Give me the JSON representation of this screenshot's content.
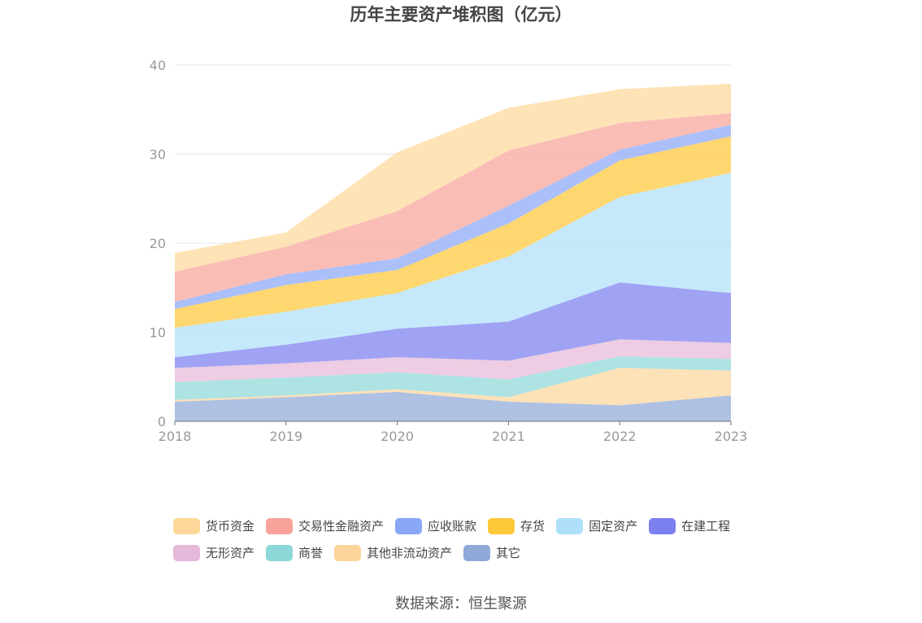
{
  "chart_data": {
    "type": "area",
    "stacked": true,
    "title": "历年主要资产堆积图（亿元）",
    "source": "数据来源：恒生聚源",
    "x": [
      "2018",
      "2019",
      "2020",
      "2021",
      "2022",
      "2023"
    ],
    "ylim": [
      0,
      40
    ],
    "yticks": [
      "0",
      "10",
      "20",
      "30",
      "40"
    ],
    "grid": true,
    "legend_position": "bottom",
    "series": [
      {
        "name": "其它",
        "color": "#8fa9d8",
        "values": [
          2.2,
          2.7,
          3.3,
          2.2,
          1.8,
          2.9
        ]
      },
      {
        "name": "其他非流动资产",
        "color": "#fcd59b",
        "values": [
          0.2,
          0.2,
          0.3,
          0.5,
          4.2,
          2.8
        ]
      },
      {
        "name": "商誉",
        "color": "#8dd8d8",
        "values": [
          2.0,
          2.0,
          1.9,
          2.0,
          1.3,
          1.3
        ]
      },
      {
        "name": "无形资产",
        "color": "#e6b8da",
        "values": [
          1.6,
          1.6,
          1.7,
          2.1,
          1.9,
          1.8
        ]
      },
      {
        "name": "在建工程",
        "color": "#7b7ff0",
        "values": [
          1.2,
          2.1,
          3.2,
          4.4,
          6.4,
          5.6
        ]
      },
      {
        "name": "固定资产",
        "color": "#aee1f9",
        "values": [
          3.3,
          3.7,
          4.0,
          7.3,
          9.6,
          13.5
        ]
      },
      {
        "name": "存货",
        "color": "#ffc839",
        "values": [
          2.1,
          3.0,
          2.6,
          3.7,
          4.1,
          4.1
        ]
      },
      {
        "name": "应收账款",
        "color": "#8aa6f7",
        "values": [
          0.8,
          1.2,
          1.3,
          2.0,
          1.2,
          1.3
        ]
      },
      {
        "name": "交易性金融资产",
        "color": "#f8a39a",
        "values": [
          3.4,
          3.1,
          5.3,
          6.2,
          3.0,
          1.3
        ]
      },
      {
        "name": "货币资金",
        "color": "#fdd89a",
        "values": [
          2.1,
          1.6,
          6.6,
          4.8,
          3.8,
          3.3
        ]
      }
    ],
    "legend_rows": [
      [
        "货币资金",
        "交易性金融资产",
        "应收账款",
        "存货",
        "固定资产",
        "在建工程"
      ],
      [
        "无形资产",
        "商誉",
        "其他非流动资产",
        "其它"
      ]
    ]
  }
}
